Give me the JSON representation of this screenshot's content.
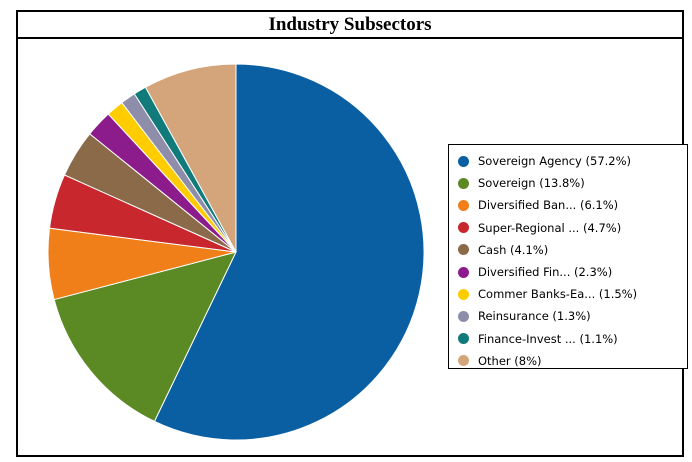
{
  "chart_data": {
    "type": "pie",
    "title": "Industry Subsectors",
    "legend_position": "right",
    "slices": [
      {
        "label": "Sovereign Agency (57.2%)",
        "value": 57.2,
        "color": "#0a5fa3"
      },
      {
        "label": "Sovereign (13.8%)",
        "value": 13.8,
        "color": "#5b8a25"
      },
      {
        "label": "Diversified Ban... (6.1%)",
        "value": 6.1,
        "color": "#f07f19"
      },
      {
        "label": "Super-Regional ... (4.7%)",
        "value": 4.7,
        "color": "#c8272d"
      },
      {
        "label": "Cash (4.1%)",
        "value": 4.1,
        "color": "#8a6a48"
      },
      {
        "label": "Diversified Fin... (2.3%)",
        "value": 2.3,
        "color": "#8c1c8c"
      },
      {
        "label": "Commer Banks-Ea... (1.5%)",
        "value": 1.5,
        "color": "#ffcc00"
      },
      {
        "label": "Reinsurance (1.3%)",
        "value": 1.3,
        "color": "#8e8eaa"
      },
      {
        "label": "Finance-Invest ... (1.1%)",
        "value": 1.1,
        "color": "#117a7a"
      },
      {
        "label": "Other (8%)",
        "value": 8.0,
        "color": "#d4a57a"
      }
    ]
  }
}
